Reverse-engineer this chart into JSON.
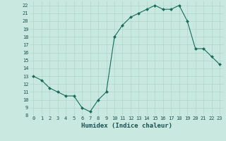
{
  "x": [
    0,
    1,
    2,
    3,
    4,
    5,
    6,
    7,
    8,
    9,
    10,
    11,
    12,
    13,
    14,
    15,
    16,
    17,
    18,
    19,
    20,
    21,
    22,
    23
  ],
  "y": [
    13,
    12.5,
    11.5,
    11,
    10.5,
    10.5,
    9,
    8.5,
    10,
    11,
    18,
    19.5,
    20.5,
    21,
    21.5,
    22,
    21.5,
    21.5,
    22,
    20,
    16.5,
    16.5,
    15.5,
    14.5
  ],
  "line_color": "#1a6b5a",
  "marker": "D",
  "marker_size": 2.0,
  "bg_color": "#c8e8e0",
  "grid_color": "#b0d4cc",
  "xlabel": "Humidex (Indice chaleur)",
  "xlim": [
    -0.5,
    23.5
  ],
  "ylim": [
    8,
    22.5
  ],
  "yticks": [
    8,
    9,
    10,
    11,
    12,
    13,
    14,
    15,
    16,
    17,
    18,
    19,
    20,
    21,
    22
  ],
  "xticks": [
    0,
    1,
    2,
    3,
    4,
    5,
    6,
    7,
    8,
    9,
    10,
    11,
    12,
    13,
    14,
    15,
    16,
    17,
    18,
    19,
    20,
    21,
    22,
    23
  ],
  "tick_fontsize": 5.0,
  "xlabel_fontsize": 6.5,
  "label_color": "#1a5050"
}
